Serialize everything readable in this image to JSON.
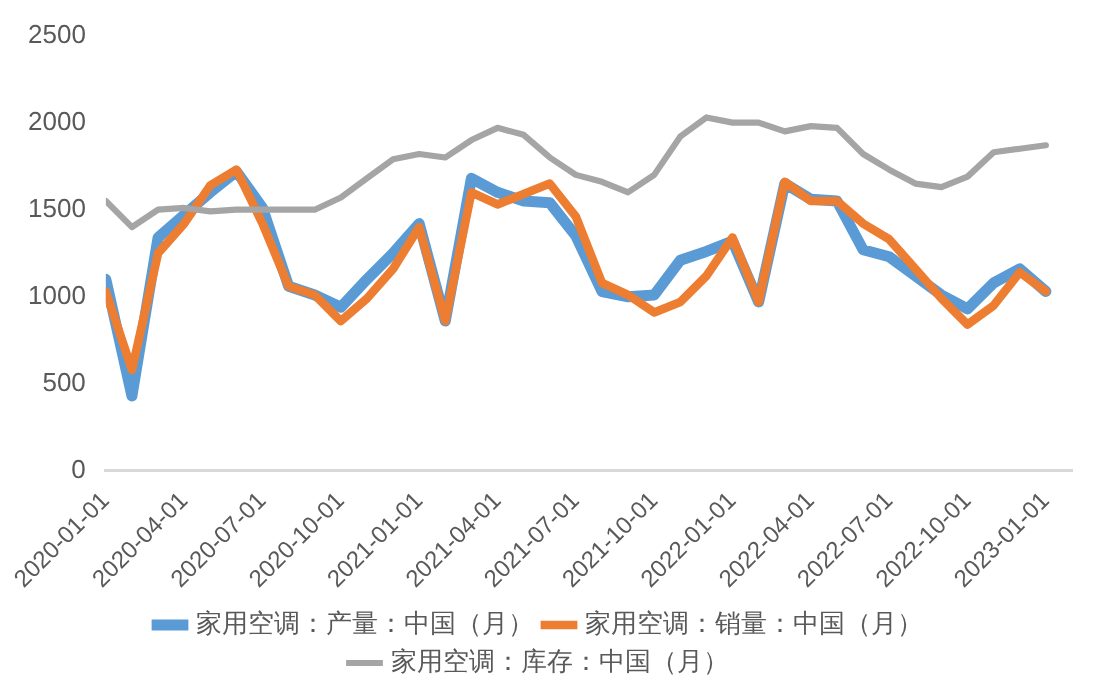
{
  "chart_data": {
    "type": "line",
    "x": [
      "2020-01",
      "2020-02",
      "2020-03",
      "2020-04",
      "2020-05",
      "2020-06",
      "2020-07",
      "2020-08",
      "2020-09",
      "2020-10",
      "2020-11",
      "2020-12",
      "2021-01",
      "2021-02",
      "2021-03",
      "2021-04",
      "2021-05",
      "2021-06",
      "2021-07",
      "2021-08",
      "2021-09",
      "2021-10",
      "2021-11",
      "2021-12",
      "2022-01",
      "2022-02",
      "2022-03",
      "2022-04",
      "2022-05",
      "2022-06",
      "2022-07",
      "2022-08",
      "2022-09",
      "2022-10",
      "2022-11",
      "2022-12",
      "2023-01"
    ],
    "series": [
      {
        "name": "家用空调：产量：中国（月）",
        "color": "#5b9bd5",
        "values": [
          1100,
          430,
          1340,
          1470,
          1600,
          1720,
          1510,
          1060,
          1010,
          940,
          1100,
          1250,
          1420,
          860,
          1680,
          1600,
          1550,
          1540,
          1350,
          1030,
          1000,
          1010,
          1210,
          1260,
          1320,
          970,
          1650,
          1560,
          1550,
          1270,
          1230,
          1120,
          1010,
          930,
          1080,
          1160,
          1030
        ]
      },
      {
        "name": "家用空调：销量：中国（月）",
        "color": "#ed7d31",
        "values": [
          1030,
          580,
          1250,
          1420,
          1640,
          1730,
          1420,
          1060,
          1010,
          860,
          990,
          1160,
          1400,
          860,
          1600,
          1530,
          1590,
          1650,
          1460,
          1080,
          1010,
          910,
          970,
          1120,
          1340,
          970,
          1660,
          1550,
          1550,
          1420,
          1330,
          1160,
          990,
          840,
          950,
          1140,
          1030
        ]
      },
      {
        "name": "家用空调：库存：中国（月）",
        "color": "#a5a5a5",
        "values": [
          1550,
          1400,
          1500,
          1510,
          1490,
          1500,
          1500,
          1500,
          1500,
          1570,
          1680,
          1790,
          1820,
          1800,
          1900,
          1970,
          1930,
          1800,
          1700,
          1660,
          1600,
          1700,
          1920,
          2030,
          2000,
          2000,
          1950,
          1980,
          1970,
          1820,
          1730,
          1650,
          1630,
          1690,
          1830,
          1850,
          1870
        ]
      }
    ],
    "xlim": [
      "2020-01",
      "2023-02"
    ],
    "xticks": [
      "2020-01-01",
      "2020-04-01",
      "2020-07-01",
      "2020-10-01",
      "2021-01-01",
      "2021-04-01",
      "2021-07-01",
      "2021-10-01",
      "2022-01-01",
      "2022-04-01",
      "2022-07-01",
      "2022-10-01",
      "2023-01-01"
    ],
    "ylim": [
      0,
      2500
    ],
    "yticks": [
      0,
      500,
      1000,
      1500,
      2000,
      2500
    ],
    "grid": false,
    "legend": "bottom",
    "marker": "none",
    "line_style": "solid"
  }
}
